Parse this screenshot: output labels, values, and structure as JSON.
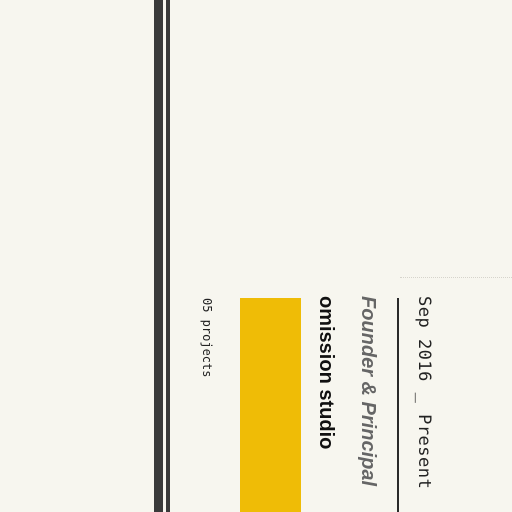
{
  "colors": {
    "background": "#f7f6ef",
    "rail": "#3a3a3a",
    "accent": "#efbc06",
    "text_dark": "#111111",
    "text_muted": "#666666"
  },
  "experience": {
    "date_range": "Sep 2016 _ Present",
    "role": "Founder & Principal",
    "company": "omission studio",
    "project_count": "05 projects"
  }
}
